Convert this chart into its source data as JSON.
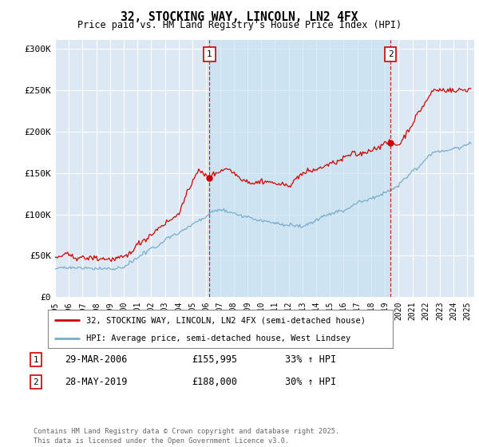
{
  "title": "32, STOCKING WAY, LINCOLN, LN2 4FX",
  "subtitle": "Price paid vs. HM Land Registry's House Price Index (HPI)",
  "ylabel_ticks": [
    "£0",
    "£50K",
    "£100K",
    "£150K",
    "£200K",
    "£250K",
    "£300K"
  ],
  "ytick_values": [
    0,
    50000,
    100000,
    150000,
    200000,
    250000,
    300000
  ],
  "ylim": [
    0,
    310000
  ],
  "xlim_start": 1995.0,
  "xlim_end": 2025.5,
  "red_line_color": "#cc0000",
  "blue_line_color": "#7aadcb",
  "background_color": "#dce9f5",
  "highlight_color": "#c8ddf0",
  "grid_color": "#ffffff",
  "marker1_x": 2006.23,
  "marker2_x": 2019.41,
  "marker1_price": 155995,
  "marker2_price": 188000,
  "legend_label1": "32, STOCKING WAY, LINCOLN, LN2 4FX (semi-detached house)",
  "legend_label2": "HPI: Average price, semi-detached house, West Lindsey",
  "annotation1_date": "29-MAR-2006",
  "annotation1_price": "£155,995",
  "annotation1_hpi": "33% ↑ HPI",
  "annotation2_date": "28-MAY-2019",
  "annotation2_price": "£188,000",
  "annotation2_hpi": "30% ↑ HPI",
  "footer": "Contains HM Land Registry data © Crown copyright and database right 2025.\nThis data is licensed under the Open Government Licence v3.0."
}
